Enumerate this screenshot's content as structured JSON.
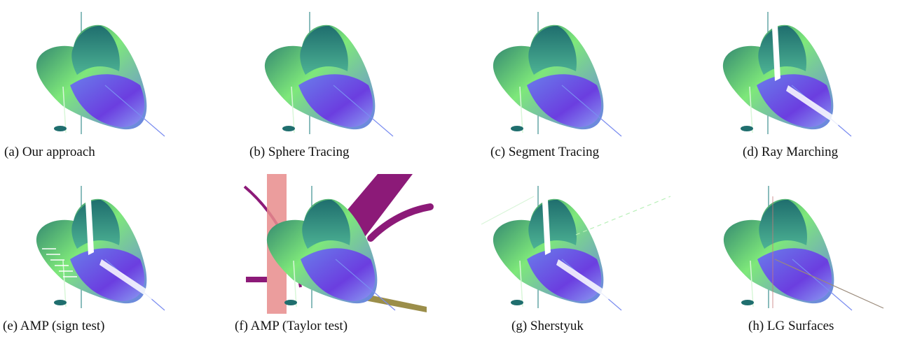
{
  "figure": {
    "panels": [
      {
        "id": "a",
        "caption": "(a) Our approach",
        "artifacts": "none"
      },
      {
        "id": "b",
        "caption": "(b) Sphere Tracing",
        "artifacts": "none"
      },
      {
        "id": "c",
        "caption": "(c) Segment Tracing",
        "artifacts": "none"
      },
      {
        "id": "d",
        "caption": "(d) Ray Marching",
        "artifacts": "gap"
      },
      {
        "id": "e",
        "caption": "(e) AMP (sign test)",
        "artifacts": "gap-bands"
      },
      {
        "id": "f",
        "caption": "(f) AMP (Taylor test)",
        "artifacts": "spurious-surfaces"
      },
      {
        "id": "g",
        "caption": "(g) Sherstyuk",
        "artifacts": "gap-streaks"
      },
      {
        "id": "h",
        "caption": "(h) LG Surfaces",
        "artifacts": "thin-lines"
      }
    ],
    "colors": {
      "surface_teal": "#1f6e6e",
      "surface_green": "#7ee87a",
      "surface_blue": "#6a7dea",
      "surface_violet": "#6b3ee0",
      "artifact_magenta": "#8c1a78",
      "artifact_pink": "#e88c8c",
      "artifact_olive": "#8a7a2a"
    }
  }
}
